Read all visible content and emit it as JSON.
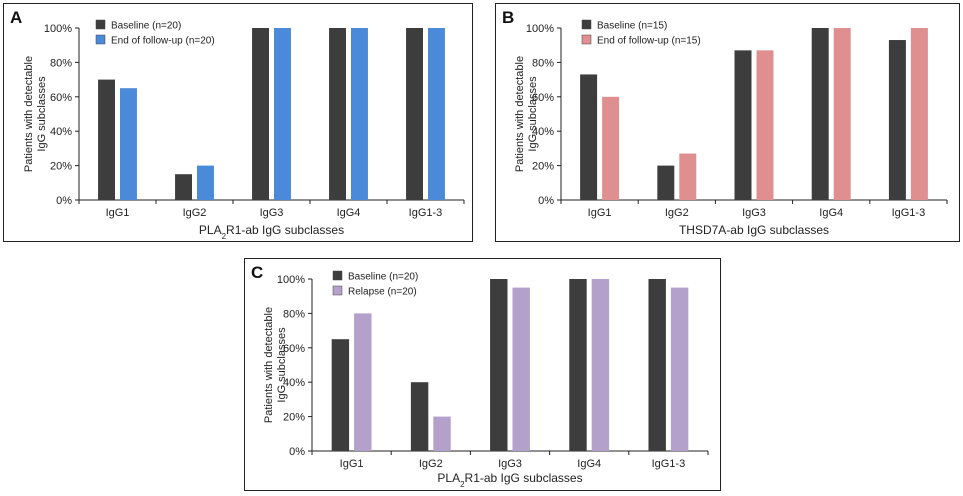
{
  "chart_data": [
    {
      "panel": "A",
      "type": "bar",
      "categories": [
        "IgG1",
        "IgG2",
        "IgG3",
        "IgG4",
        "IgG1-3"
      ],
      "series": [
        {
          "name": "Baseline (n=20)",
          "color": "#3d3d3d",
          "values": [
            70,
            15,
            100,
            100,
            100
          ]
        },
        {
          "name": "End of follow-up (n=20)",
          "color": "#4a8ad8",
          "values": [
            65,
            20,
            100,
            100,
            100
          ]
        }
      ],
      "ylabel_line1": "Patients with detectable",
      "ylabel_line2": "IgG subclasses",
      "xlabel_pre": "PLA",
      "xlabel_sub": "2",
      "xlabel_post": "R1-ab IgG subclasses",
      "ylim": [
        0,
        100
      ],
      "yticks": [
        0,
        20,
        40,
        60,
        80,
        100
      ],
      "ytick_labels": [
        "0%",
        "20%",
        "40%",
        "60%",
        "80%",
        "100%"
      ],
      "legend_position": "top-left"
    },
    {
      "panel": "B",
      "type": "bar",
      "categories": [
        "IgG1",
        "IgG2",
        "IgG3",
        "IgG4",
        "IgG1-3"
      ],
      "series": [
        {
          "name": "Baseline (n=15)",
          "color": "#3d3d3d",
          "values": [
            73,
            20,
            87,
            100,
            93
          ]
        },
        {
          "name": "End of follow-up (n=15)",
          "color": "#df8f8f",
          "values": [
            60,
            27,
            87,
            100,
            100
          ]
        }
      ],
      "ylabel_line1": "Patients with detectable",
      "ylabel_line2": "IgG subclasses",
      "xlabel_pre": "THSD7A-ab IgG subclasses",
      "xlabel_sub": "",
      "xlabel_post": "",
      "ylim": [
        0,
        100
      ],
      "yticks": [
        0,
        20,
        40,
        60,
        80,
        100
      ],
      "ytick_labels": [
        "0%",
        "20%",
        "40%",
        "60%",
        "80%",
        "100%"
      ],
      "legend_position": "top-left"
    },
    {
      "panel": "C",
      "type": "bar",
      "categories": [
        "IgG1",
        "IgG2",
        "IgG3",
        "IgG4",
        "IgG1-3"
      ],
      "series": [
        {
          "name": "Baseline (n=20)",
          "color": "#3d3d3d",
          "values": [
            65,
            40,
            100,
            100,
            100
          ]
        },
        {
          "name": "Relapse (n=20)",
          "color": "#b3a0cb",
          "values": [
            80,
            20,
            95,
            100,
            95
          ]
        }
      ],
      "ylabel_line1": "Patients with detectable",
      "ylabel_line2": "IgG subclasses",
      "xlabel_pre": "PLA",
      "xlabel_sub": "2",
      "xlabel_post": "R1-ab IgG subclasses",
      "ylim": [
        0,
        100
      ],
      "yticks": [
        0,
        20,
        40,
        60,
        80,
        100
      ],
      "ytick_labels": [
        "0%",
        "20%",
        "40%",
        "60%",
        "80%",
        "100%"
      ],
      "legend_position": "top-left"
    }
  ]
}
